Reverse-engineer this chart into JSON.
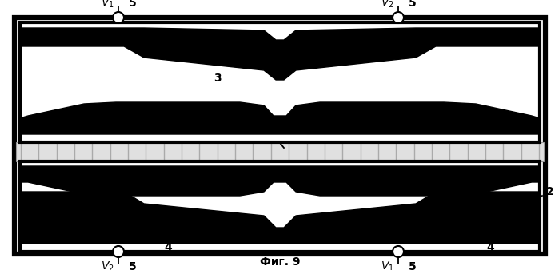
{
  "fig_width": 6.99,
  "fig_height": 3.38,
  "dpi": 100,
  "bg_color": "#ffffff",
  "caption": "Фиг. 9"
}
